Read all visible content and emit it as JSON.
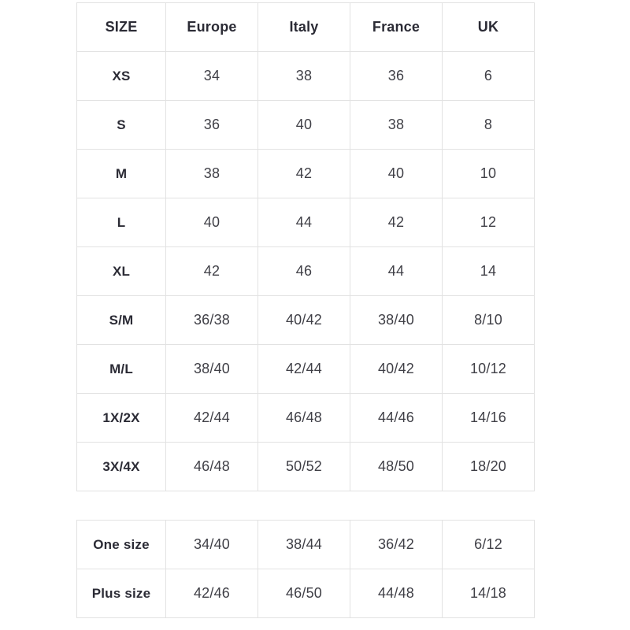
{
  "colors": {
    "background": "#ffffff",
    "border": "#e2e2e2",
    "header_text": "#2b2b35",
    "cell_text": "#3f3f46"
  },
  "size_table": {
    "headers": [
      "SIZE",
      "Europe",
      "Italy",
      "France",
      "UK"
    ],
    "rows": [
      [
        "XS",
        "34",
        "38",
        "36",
        "6"
      ],
      [
        "S",
        "36",
        "40",
        "38",
        "8"
      ],
      [
        "M",
        "38",
        "42",
        "40",
        "10"
      ],
      [
        "L",
        "40",
        "44",
        "42",
        "12"
      ],
      [
        "XL",
        "42",
        "46",
        "44",
        "14"
      ],
      [
        "S/M",
        "36/38",
        "40/42",
        "38/40",
        "8/10"
      ],
      [
        "M/L",
        "38/40",
        "42/44",
        "40/42",
        "10/12"
      ],
      [
        "1X/2X",
        "42/44",
        "46/48",
        "44/46",
        "14/16"
      ],
      [
        "3X/4X",
        "46/48",
        "50/52",
        "48/50",
        "18/20"
      ]
    ]
  },
  "special_size_table": {
    "rows": [
      [
        "One size",
        "34/40",
        "38/44",
        "36/42",
        "6/12"
      ],
      [
        "Plus size",
        "42/46",
        "46/50",
        "44/48",
        "14/18"
      ]
    ]
  }
}
